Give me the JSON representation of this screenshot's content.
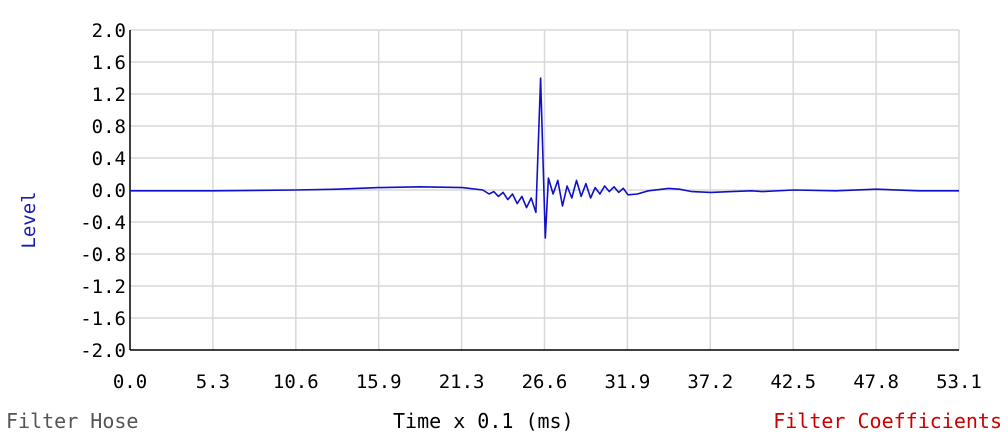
{
  "footer": {
    "left_caption": "Filter Hose",
    "xlabel": "Time x 0.1 (ms)",
    "right_caption": "Filter Coefficients"
  },
  "colors": {
    "series": "#1010c8",
    "grid": "#d8d8d8",
    "axis": "#000000",
    "ylabel": "#1a1ab4",
    "left_caption": "#555555",
    "right_caption": "#cc0000"
  },
  "chart_data": {
    "type": "line",
    "title": "",
    "xlabel": "Time x 0.1 (ms)",
    "ylabel": "Level",
    "xlim": [
      0.0,
      53.1
    ],
    "ylim": [
      -2.0,
      2.0
    ],
    "grid": true,
    "x_ticks": [
      "0.0",
      "5.3",
      "10.6",
      "15.9",
      "21.3",
      "26.6",
      "31.9",
      "37.2",
      "42.5",
      "47.8",
      "53.1"
    ],
    "y_ticks": [
      "2.0",
      "1.6",
      "1.2",
      "0.8",
      "0.4",
      "0.0",
      "-0.4",
      "-0.8",
      "-1.2",
      "-1.6",
      "-2.0"
    ],
    "series": [
      {
        "x": [
          0,
          5.3,
          10.6,
          13.3,
          15.9,
          18.6,
          21.3,
          22.6,
          23.0,
          23.3,
          23.6,
          23.9,
          24.2,
          24.5,
          24.8,
          25.1,
          25.4,
          25.7,
          26.0,
          26.3,
          26.6,
          26.8,
          27.1,
          27.4,
          27.7,
          28.0,
          28.3,
          28.6,
          28.9,
          29.2,
          29.5,
          29.8,
          30.1,
          30.4,
          30.7,
          31.0,
          31.3,
          31.6,
          31.9,
          32.5,
          33.2,
          34.5,
          35.2,
          36.0,
          37.2,
          38.5,
          39.8,
          40.5,
          42.5,
          45.2,
          47.8,
          50.5,
          53.1
        ],
        "values": [
          -0.01,
          -0.01,
          0.0,
          0.01,
          0.03,
          0.04,
          0.03,
          0.0,
          -0.05,
          -0.02,
          -0.08,
          -0.03,
          -0.12,
          -0.05,
          -0.17,
          -0.08,
          -0.22,
          -0.1,
          -0.28,
          1.4,
          -0.6,
          0.15,
          -0.05,
          0.12,
          -0.2,
          0.05,
          -0.1,
          0.12,
          -0.08,
          0.08,
          -0.1,
          0.03,
          -0.05,
          0.05,
          -0.02,
          0.04,
          -0.03,
          0.02,
          -0.06,
          -0.05,
          -0.01,
          0.02,
          0.01,
          -0.02,
          -0.03,
          -0.02,
          -0.01,
          -0.02,
          0.0,
          -0.01,
          0.01,
          -0.01,
          -0.01
        ]
      }
    ]
  }
}
